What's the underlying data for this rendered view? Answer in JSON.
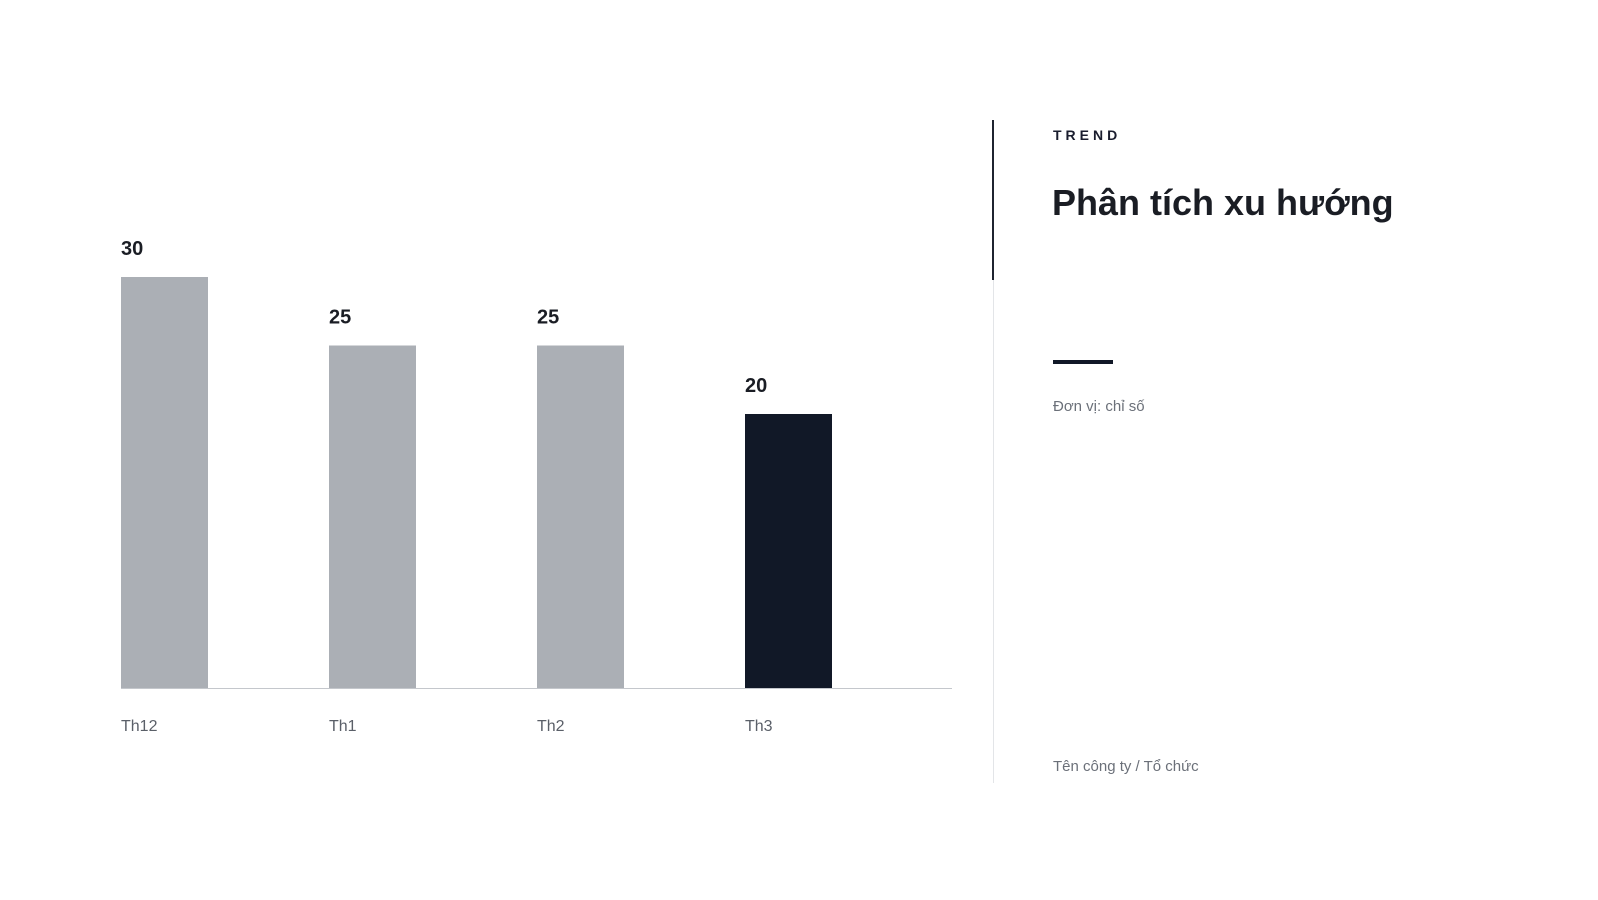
{
  "header": {
    "eyebrow": "TREND",
    "title": "Phân tích xu hướng"
  },
  "unit_note": "Đơn vị: chỉ số",
  "footer": {
    "organization": "Tên công ty / Tổ chức"
  },
  "colors": {
    "bar_default": "#abafb5",
    "bar_highlight": "#111827",
    "axis": "#c4c7cc",
    "accent": "#111827"
  },
  "chart_data": {
    "type": "bar",
    "categories": [
      "Th12",
      "Th1",
      "Th2",
      "Th3"
    ],
    "values": [
      30,
      25,
      25,
      20
    ],
    "highlight_index": 3,
    "data_labels": true,
    "ylim": [
      0,
      30
    ],
    "grid": false,
    "legend": "none",
    "title": "",
    "xlabel": "",
    "ylabel": ""
  }
}
